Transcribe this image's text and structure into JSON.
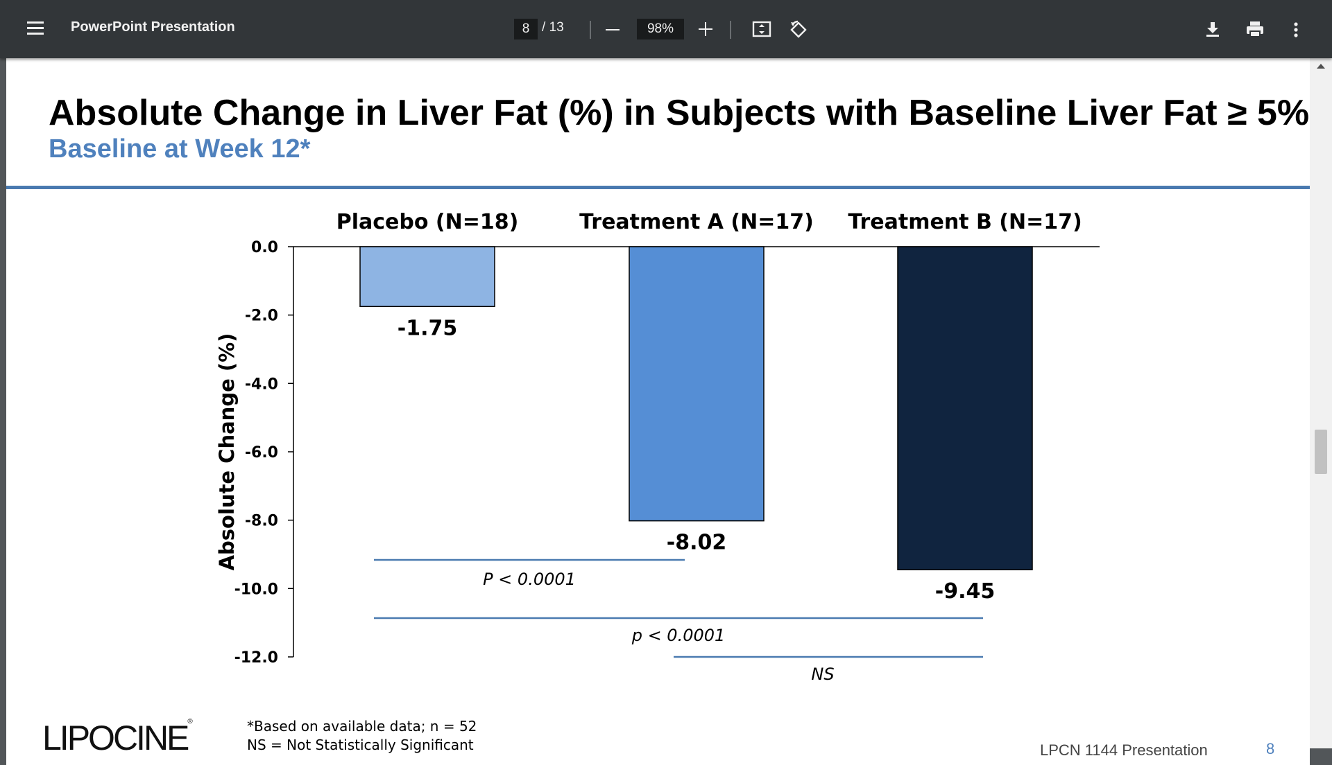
{
  "toolbar": {
    "title": "PowerPoint Presentation",
    "page_current": "8",
    "page_total": "/ 13",
    "zoom": "98%"
  },
  "slide": {
    "title": "Absolute Change in Liver Fat (%) in Subjects with Baseline Liver Fat ≥ 5%",
    "subtitle": "Baseline at Week 12*",
    "footnote_1": "*Based on available data; n = 52",
    "footnote_2": "NS = Not Statistically Significant",
    "logo": "LIPOCINE",
    "logo_mark": "®",
    "footer_text": "LPCN 1144 Presentation",
    "footer_page": "8",
    "colors": {
      "accent": "#4f81bd",
      "rule": "#4a7ab0"
    }
  },
  "chart_data": {
    "type": "bar",
    "categories": [
      "Placebo (N=18)",
      "Treatment A (N=17)",
      "Treatment B (N=17)"
    ],
    "values": [
      -1.75,
      -8.02,
      -9.45
    ],
    "value_labels": [
      "-1.75",
      "-8.02",
      "-9.45"
    ],
    "bar_colors": [
      "#8eb4e3",
      "#558ed5",
      "#10243f"
    ],
    "ylabel": "Absolute Change (%)",
    "ylim": [
      -12,
      0
    ],
    "yticks": [
      0,
      -2,
      -4,
      -6,
      -8,
      -10,
      -12
    ],
    "ytick_labels": [
      "0.0",
      "-2.0",
      "-4.0",
      "-6.0",
      "-8.0",
      "-10.0",
      "-12.0"
    ],
    "grid": false,
    "category_labels_position": "top",
    "comparisons": [
      {
        "from": 0,
        "to": 1,
        "label": "P < 0.0001"
      },
      {
        "from": 0,
        "to": 2,
        "label": "p < 0.0001"
      },
      {
        "from": 1,
        "to": 2,
        "label": "NS"
      }
    ]
  }
}
